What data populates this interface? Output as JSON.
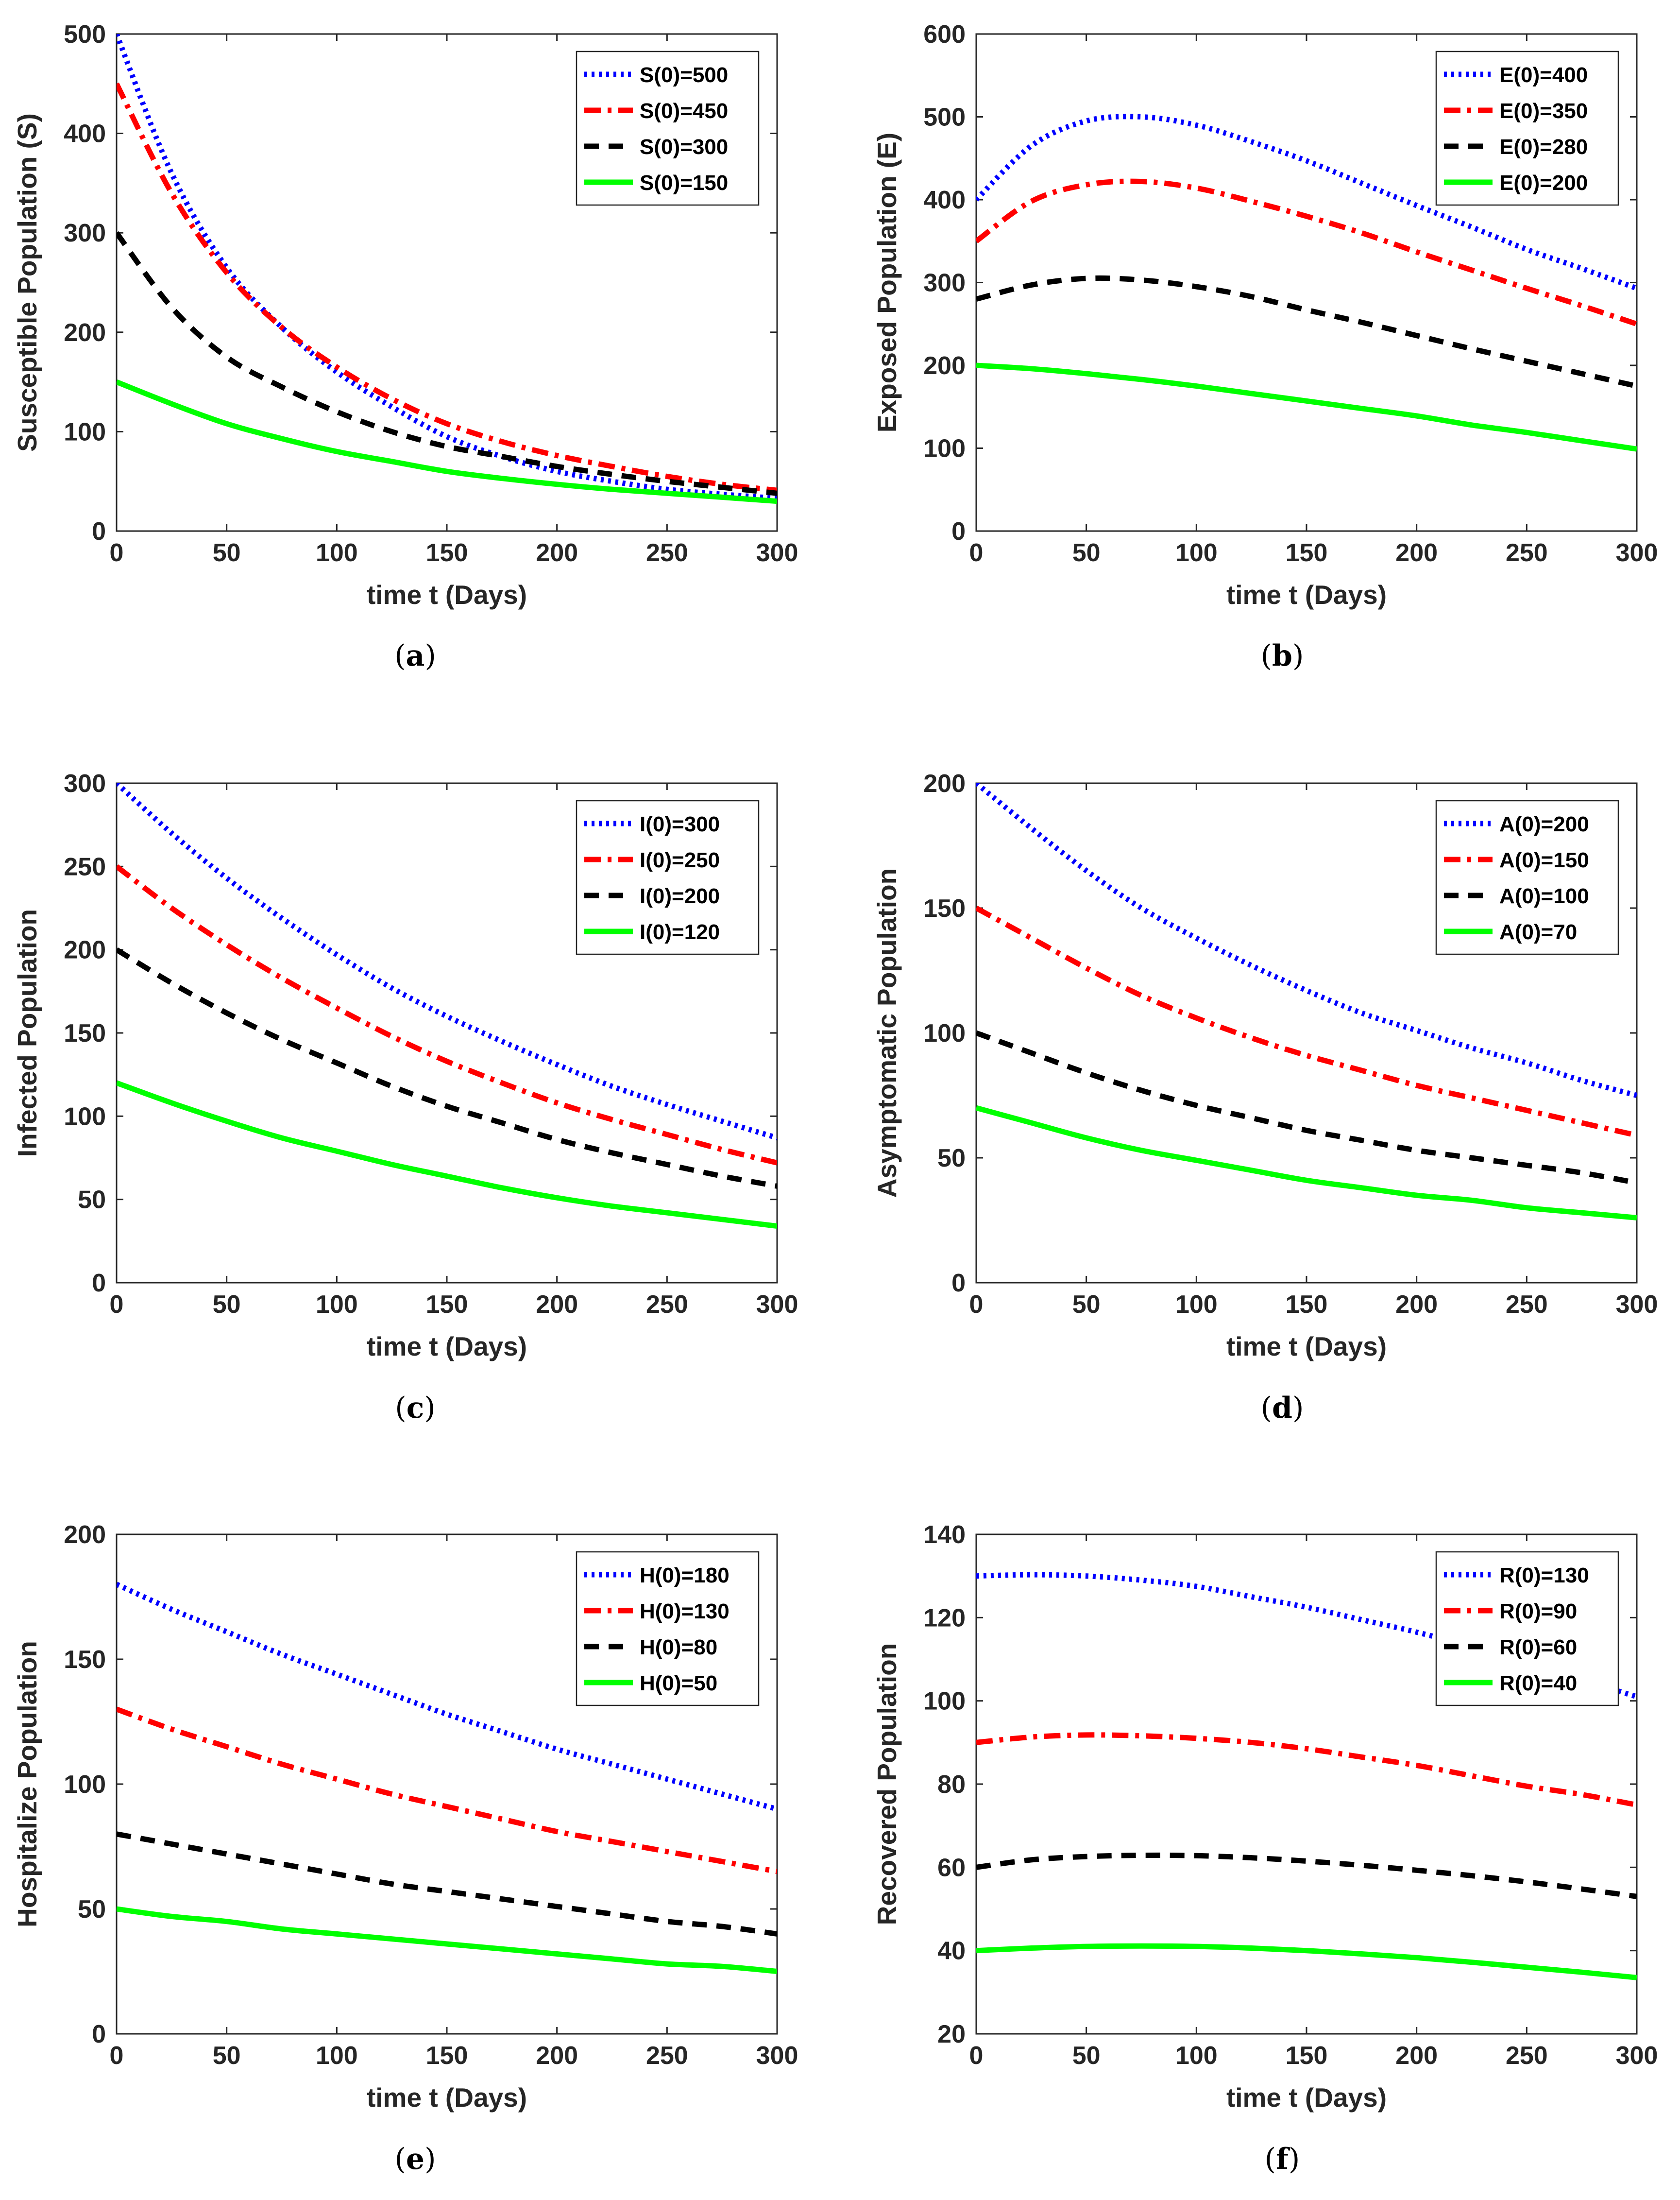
{
  "figure": {
    "panels": [
      {
        "label_prefix": "(",
        "label_letter": "a",
        "label_suffix": ")"
      },
      {
        "label_prefix": "(",
        "label_letter": "b",
        "label_suffix": ")"
      },
      {
        "label_prefix": "(",
        "label_letter": "c",
        "label_suffix": ")"
      },
      {
        "label_prefix": "(",
        "label_letter": "d",
        "label_suffix": ")"
      },
      {
        "label_prefix": "(",
        "label_letter": "e",
        "label_suffix": ")"
      },
      {
        "label_prefix": "(",
        "label_letter": "f",
        "label_suffix": ")"
      }
    ]
  },
  "styles": {
    "colors": {
      "blue": "#0000ff",
      "red": "#ff0000",
      "black": "#000000",
      "green": "#00ff00"
    },
    "dashes": {
      "blue": "dotted",
      "red": "dash-dot",
      "black": "dashed",
      "green": "solid"
    }
  },
  "chart_data": [
    {
      "type": "line",
      "xlabel": "time t (Days)",
      "ylabel": "Susceptible Population (S)",
      "xlim": [
        0,
        300
      ],
      "ylim": [
        0,
        500
      ],
      "xticks": [
        0,
        50,
        100,
        150,
        200,
        250,
        300
      ],
      "yticks": [
        0,
        100,
        200,
        300,
        400,
        500
      ],
      "legend_position": "top-right",
      "x": [
        0,
        25,
        50,
        75,
        100,
        125,
        150,
        175,
        200,
        225,
        250,
        275,
        300
      ],
      "series": [
        {
          "name": "S(0)=500",
          "color": "blue",
          "values": [
            500,
            360,
            265,
            205,
            160,
            125,
            95,
            75,
            60,
            50,
            42,
            37,
            33
          ]
        },
        {
          "name": "S(0)=450",
          "color": "red",
          "values": [
            450,
            340,
            260,
            205,
            165,
            133,
            108,
            90,
            76,
            65,
            55,
            47,
            41
          ]
        },
        {
          "name": "S(0)=300",
          "color": "black",
          "values": [
            300,
            225,
            175,
            145,
            120,
            100,
            85,
            75,
            65,
            57,
            50,
            44,
            38
          ]
        },
        {
          "name": "S(0)=150",
          "color": "green",
          "values": [
            150,
            128,
            108,
            93,
            80,
            70,
            60,
            53,
            47,
            42,
            38,
            34,
            30
          ]
        }
      ]
    },
    {
      "type": "line",
      "xlabel": "time t (Days)",
      "ylabel": "Exposed Population (E)",
      "xlim": [
        0,
        300
      ],
      "ylim": [
        0,
        600
      ],
      "xticks": [
        0,
        50,
        100,
        150,
        200,
        250,
        300
      ],
      "yticks": [
        0,
        100,
        200,
        300,
        400,
        500,
        600
      ],
      "legend_position": "top-right",
      "x": [
        0,
        25,
        50,
        75,
        100,
        125,
        150,
        175,
        200,
        225,
        250,
        275,
        300
      ],
      "series": [
        {
          "name": "E(0)=400",
          "color": "blue",
          "values": [
            400,
            465,
            495,
            500,
            490,
            470,
            447,
            420,
            393,
            367,
            340,
            317,
            293
          ]
        },
        {
          "name": "E(0)=350",
          "color": "red",
          "values": [
            350,
            398,
            418,
            422,
            414,
            398,
            380,
            360,
            337,
            315,
            293,
            272,
            250
          ]
        },
        {
          "name": "E(0)=280",
          "color": "black",
          "values": [
            280,
            297,
            305,
            303,
            295,
            283,
            267,
            252,
            236,
            220,
            205,
            190,
            175
          ]
        },
        {
          "name": "E(0)=200",
          "color": "green",
          "values": [
            200,
            196,
            190,
            183,
            175,
            166,
            157,
            148,
            139,
            128,
            119,
            109,
            99
          ]
        }
      ]
    },
    {
      "type": "line",
      "xlabel": "time t (Days)",
      "ylabel": "Infected Population",
      "xlim": [
        0,
        300
      ],
      "ylim": [
        0,
        300
      ],
      "xticks": [
        0,
        50,
        100,
        150,
        200,
        250,
        300
      ],
      "yticks": [
        0,
        50,
        100,
        150,
        200,
        250,
        300
      ],
      "legend_position": "top-right",
      "x": [
        0,
        25,
        50,
        75,
        100,
        125,
        150,
        175,
        200,
        225,
        250,
        275,
        300
      ],
      "series": [
        {
          "name": "I(0)=300",
          "color": "blue",
          "values": [
            300,
            270,
            243,
            219,
            197,
            177,
            160,
            145,
            131,
            118,
            107,
            97,
            87
          ]
        },
        {
          "name": "I(0)=250",
          "color": "red",
          "values": [
            250,
            225,
            203,
            183,
            165,
            148,
            133,
            120,
            108,
            98,
            89,
            80,
            72
          ]
        },
        {
          "name": "I(0)=200",
          "color": "black",
          "values": [
            200,
            180,
            162,
            146,
            132,
            118,
            106,
            96,
            86,
            78,
            71,
            64,
            58
          ]
        },
        {
          "name": "I(0)=120",
          "color": "green",
          "values": [
            120,
            108,
            97,
            87,
            79,
            71,
            64,
            57,
            51,
            46,
            42,
            38,
            34
          ]
        }
      ]
    },
    {
      "type": "line",
      "xlabel": "time t (Days)",
      "ylabel": "Asymptomatic Population",
      "xlim": [
        0,
        300
      ],
      "ylim": [
        0,
        200
      ],
      "xticks": [
        0,
        50,
        100,
        150,
        200,
        250,
        300
      ],
      "yticks": [
        0,
        50,
        100,
        150,
        200
      ],
      "legend_position": "top-right",
      "x": [
        0,
        25,
        50,
        75,
        100,
        125,
        150,
        175,
        200,
        225,
        250,
        275,
        300
      ],
      "series": [
        {
          "name": "A(0)=200",
          "color": "blue",
          "values": [
            200,
            182,
            165,
            150,
            138,
            127,
            117,
            108,
            101,
            94,
            88,
            81,
            75
          ]
        },
        {
          "name": "A(0)=150",
          "color": "red",
          "values": [
            150,
            138,
            126,
            115,
            106,
            98,
            91,
            85,
            79,
            74,
            69,
            64,
            59
          ]
        },
        {
          "name": "A(0)=100",
          "color": "black",
          "values": [
            100,
            92,
            84,
            77,
            71,
            66,
            61,
            57,
            53,
            50,
            47,
            44,
            40
          ]
        },
        {
          "name": "A(0)=70",
          "color": "green",
          "values": [
            70,
            64,
            58,
            53,
            49,
            45,
            41,
            38,
            35,
            33,
            30,
            28,
            26
          ]
        }
      ]
    },
    {
      "type": "line",
      "xlabel": "time t (Days)",
      "ylabel": "Hospitalize Population",
      "xlim": [
        0,
        300
      ],
      "ylim": [
        0,
        200
      ],
      "xticks": [
        0,
        50,
        100,
        150,
        200,
        250,
        300
      ],
      "yticks": [
        0,
        50,
        100,
        150,
        200
      ],
      "legend_position": "top-right",
      "x": [
        0,
        25,
        50,
        75,
        100,
        125,
        150,
        175,
        200,
        225,
        250,
        275,
        300
      ],
      "series": [
        {
          "name": "H(0)=180",
          "color": "blue",
          "values": [
            180,
            170,
            161,
            152,
            144,
            136,
            128,
            121,
            114,
            108,
            102,
            96,
            90
          ]
        },
        {
          "name": "H(0)=130",
          "color": "red",
          "values": [
            130,
            122,
            115,
            108,
            102,
            96,
            91,
            86,
            81,
            77,
            73,
            69,
            65
          ]
        },
        {
          "name": "H(0)=80",
          "color": "black",
          "values": [
            80,
            76,
            72,
            68,
            64,
            60,
            57,
            54,
            51,
            48,
            45,
            43,
            40
          ]
        },
        {
          "name": "H(0)=50",
          "color": "green",
          "values": [
            50,
            47,
            45,
            42,
            40,
            38,
            36,
            34,
            32,
            30,
            28,
            27,
            25
          ]
        }
      ]
    },
    {
      "type": "line",
      "xlabel": "time t (Days)",
      "ylabel": "Recovered Population",
      "xlim": [
        0,
        300
      ],
      "ylim": [
        20,
        140
      ],
      "xticks": [
        0,
        50,
        100,
        150,
        200,
        250,
        300
      ],
      "yticks": [
        20,
        40,
        60,
        80,
        100,
        120,
        140
      ],
      "legend_position": "top-right",
      "x": [
        0,
        25,
        50,
        75,
        100,
        125,
        150,
        175,
        200,
        225,
        250,
        275,
        300
      ],
      "series": [
        {
          "name": "R(0)=130",
          "color": "blue",
          "values": [
            130,
            130.3,
            130,
            129,
            127.5,
            125,
            122.5,
            119.5,
            116.5,
            113,
            109,
            105,
            101
          ]
        },
        {
          "name": "R(0)=90",
          "color": "red",
          "values": [
            90,
            91.3,
            91.8,
            91.6,
            91,
            90,
            88.5,
            86.5,
            84.5,
            82,
            79.5,
            77.5,
            75
          ]
        },
        {
          "name": "R(0)=60",
          "color": "black",
          "values": [
            60,
            61.8,
            62.6,
            62.9,
            62.8,
            62.3,
            61.5,
            60.5,
            59.3,
            58,
            56.5,
            54.8,
            53
          ]
        },
        {
          "name": "R(0)=40",
          "color": "green",
          "values": [
            40,
            40.6,
            41,
            41.1,
            41,
            40.6,
            40,
            39.2,
            38.3,
            37.2,
            36,
            34.8,
            33.5
          ]
        }
      ]
    }
  ]
}
